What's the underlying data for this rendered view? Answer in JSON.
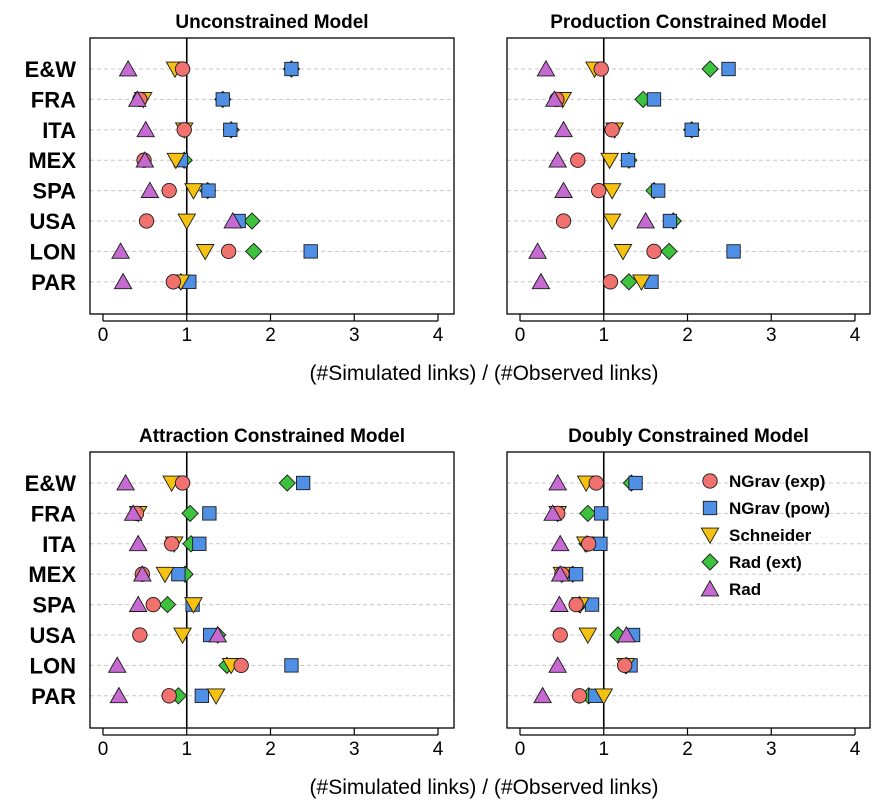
{
  "chart_data": {
    "type": "scatter",
    "categories": [
      "E&W",
      "FRA",
      "ITA",
      "MEX",
      "SPA",
      "USA",
      "LON",
      "PAR"
    ],
    "xlim": [
      0,
      4
    ],
    "xticks": [
      "0",
      "1",
      "2",
      "3",
      "4"
    ],
    "reference_line_x": 1,
    "xlabel": "(#Simulated links) / (#Observed links)",
    "grid": "horizontal dashed",
    "legend": {
      "placement": "top-right of Doubly Constrained Model panel",
      "entries": [
        {
          "series": "NGrav (exp)",
          "label": "NGrav (exp)"
        },
        {
          "series": "NGrav (pow)",
          "label": "NGrav (pow)"
        },
        {
          "series": "Schneider",
          "label": "Schneider"
        },
        {
          "series": "Rad (ext)",
          "label": "Rad (ext)"
        },
        {
          "series": "Rad",
          "label": "Rad"
        }
      ]
    },
    "series_style": {
      "NGrav (exp)": {
        "marker": "circle",
        "color": "#f0716d"
      },
      "NGrav (pow)": {
        "marker": "square",
        "color": "#4f8fe6"
      },
      "Schneider": {
        "marker": "triangle-down",
        "color": "#f5c211"
      },
      "Rad (ext)": {
        "marker": "diamond",
        "color": "#3cc23c"
      },
      "Rad": {
        "marker": "triangle-up",
        "color": "#c46ad0"
      }
    },
    "panels": [
      {
        "title": "Unconstrained Model",
        "series": [
          {
            "name": "Rad (ext)",
            "values": [
              2.25,
              1.43,
              1.53,
              0.97,
              1.25,
              1.78,
              1.8,
              0.93
            ]
          },
          {
            "name": "NGrav (pow)",
            "values": [
              2.25,
              1.43,
              1.52,
              0.93,
              1.26,
              1.62,
              2.48,
              1.03
            ]
          },
          {
            "name": "Schneider",
            "values": [
              0.86,
              0.48,
              0.97,
              0.87,
              1.08,
              1.0,
              1.22,
              0.93
            ]
          },
          {
            "name": "NGrav (exp)",
            "values": [
              0.95,
              0.44,
              0.97,
              0.49,
              0.79,
              0.52,
              1.5,
              0.84
            ]
          },
          {
            "name": "Rad",
            "values": [
              0.3,
              0.41,
              0.51,
              0.5,
              0.56,
              1.55,
              0.21,
              0.24
            ]
          }
        ]
      },
      {
        "title": "Production Constrained Model",
        "series": [
          {
            "name": "Rad (ext)",
            "values": [
              2.27,
              1.47,
              2.05,
              1.3,
              1.6,
              1.83,
              1.78,
              1.3
            ]
          },
          {
            "name": "NGrav (pow)",
            "values": [
              2.49,
              1.6,
              2.05,
              1.29,
              1.65,
              1.79,
              2.55,
              1.57
            ]
          },
          {
            "name": "Schneider",
            "values": [
              0.89,
              0.51,
              1.13,
              1.07,
              1.1,
              1.1,
              1.23,
              1.45
            ]
          },
          {
            "name": "NGrav (exp)",
            "values": [
              0.97,
              0.44,
              1.1,
              0.69,
              0.94,
              0.52,
              1.6,
              1.08
            ]
          },
          {
            "name": "Rad",
            "values": [
              0.31,
              0.41,
              0.52,
              0.45,
              0.52,
              1.5,
              0.21,
              0.25
            ]
          }
        ]
      },
      {
        "title": "Attraction Constrained Model",
        "series": [
          {
            "name": "Rad (ext)",
            "values": [
              2.2,
              1.04,
              1.05,
              0.98,
              0.77,
              1.37,
              1.48,
              0.9
            ]
          },
          {
            "name": "NGrav (pow)",
            "values": [
              2.39,
              1.27,
              1.15,
              0.9,
              1.07,
              1.28,
              2.25,
              1.18
            ]
          },
          {
            "name": "Schneider",
            "values": [
              0.82,
              0.42,
              0.85,
              0.74,
              1.08,
              0.95,
              1.53,
              1.35
            ]
          },
          {
            "name": "NGrav (exp)",
            "values": [
              0.95,
              0.4,
              0.82,
              0.47,
              0.6,
              0.44,
              1.65,
              0.79
            ]
          },
          {
            "name": "Rad",
            "values": [
              0.27,
              0.36,
              0.42,
              0.47,
              0.42,
              1.37,
              0.17,
              0.19
            ]
          }
        ]
      },
      {
        "title": "Doubly Constrained Model",
        "series": [
          {
            "name": "Rad (ext)",
            "values": [
              1.33,
              0.81,
              0.8,
              0.63,
              0.71,
              1.17,
              1.27,
              0.82
            ]
          },
          {
            "name": "NGrav (pow)",
            "values": [
              1.38,
              0.97,
              0.96,
              0.67,
              0.86,
              1.35,
              1.32,
              0.9
            ]
          },
          {
            "name": "Schneider",
            "values": [
              0.79,
              0.45,
              0.78,
              0.5,
              0.72,
              0.81,
              1.26,
              1.0
            ]
          },
          {
            "name": "NGrav (exp)",
            "values": [
              0.91,
              0.45,
              0.82,
              0.5,
              0.67,
              0.48,
              1.25,
              0.71
            ]
          },
          {
            "name": "Rad",
            "values": [
              0.45,
              0.39,
              0.48,
              0.48,
              0.47,
              1.27,
              0.45,
              0.27
            ]
          }
        ]
      }
    ]
  }
}
